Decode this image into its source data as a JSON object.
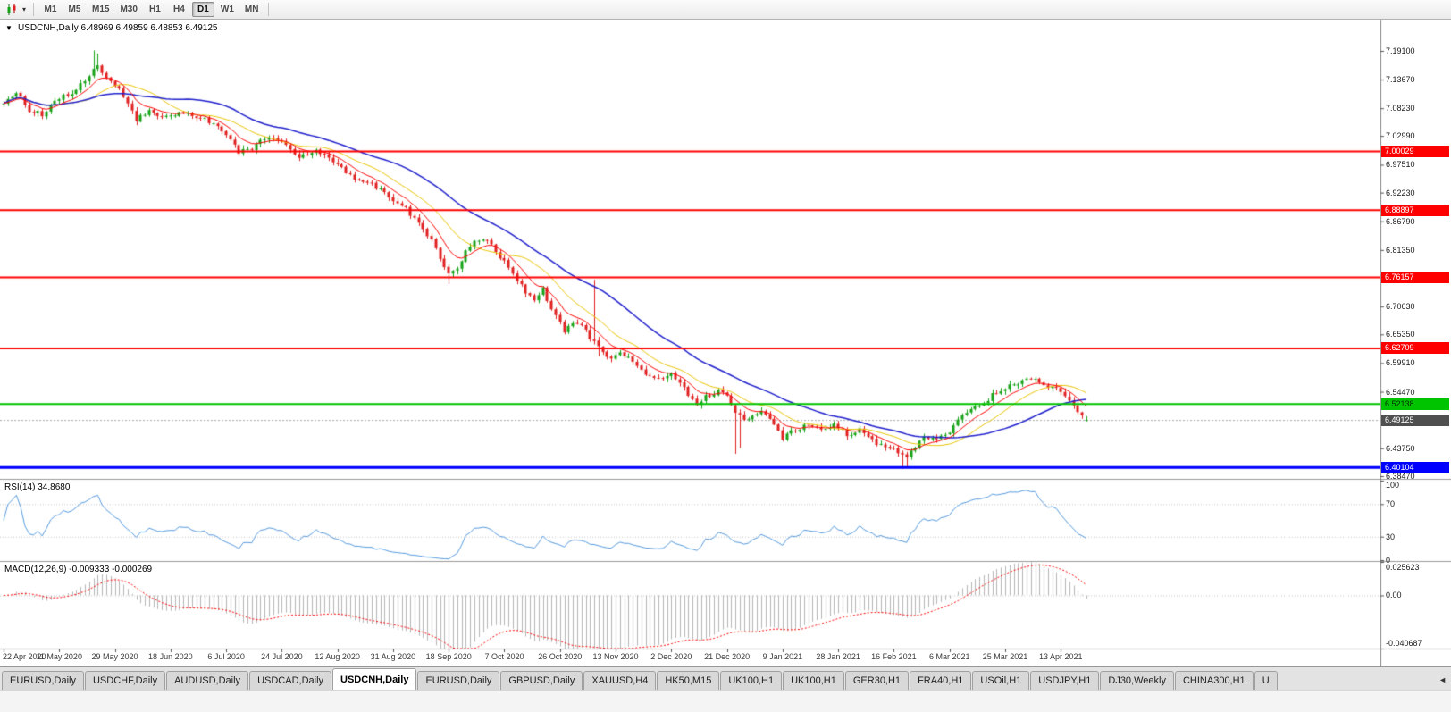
{
  "icons": {
    "chart_type": "candlestick-chart-icon",
    "caret_down": "▾",
    "one_click_arrow": "▼",
    "tab_scroll_left": "◄"
  },
  "toolbar": {
    "timeframes": [
      "M1",
      "M5",
      "M15",
      "M30",
      "H1",
      "H4",
      "D1",
      "W1",
      "MN"
    ],
    "active_timeframe": "D1"
  },
  "tabs": {
    "items": [
      {
        "label": "EURUSD,Daily",
        "active": false
      },
      {
        "label": "USDCHF,Daily",
        "active": false
      },
      {
        "label": "AUDUSD,Daily",
        "active": false
      },
      {
        "label": "USDCAD,Daily",
        "active": false
      },
      {
        "label": "USDCNH,Daily",
        "active": true
      },
      {
        "label": "EURUSD,Daily",
        "active": false
      },
      {
        "label": "GBPUSD,Daily",
        "active": false
      },
      {
        "label": "XAUUSD,H4",
        "active": false
      },
      {
        "label": "HK50,M15",
        "active": false
      },
      {
        "label": "UK100,H1",
        "active": false
      },
      {
        "label": "UK100,H1",
        "active": false
      },
      {
        "label": "GER30,H1",
        "active": false
      },
      {
        "label": "FRA40,H1",
        "active": false
      },
      {
        "label": "USOil,H1",
        "active": false
      },
      {
        "label": "USDJPY,H1",
        "active": false
      },
      {
        "label": "DJ30,Weekly",
        "active": false
      },
      {
        "label": "CHINA300,H1",
        "active": false
      },
      {
        "label": "U",
        "active": false,
        "truncated": true
      }
    ]
  },
  "chart_data": {
    "type": "candlestick",
    "symbol": "USDCNH",
    "period": "Daily",
    "info_line": "USDCNH,Daily 6.48969 6.49859 6.48853 6.49125",
    "last_ohlc": {
      "open": 6.48969,
      "high": 6.49859,
      "low": 6.48853,
      "close": 6.49125
    },
    "price_panel": {
      "ylim": [
        6.3796,
        7.2503
      ],
      "y_ticks": [
        "7.19100",
        "7.13670",
        "7.08230",
        "7.02990",
        "6.97510",
        "6.92230",
        "6.86790",
        "6.81350",
        "6.70630",
        "6.65350",
        "6.59910",
        "6.54470",
        "6.43750",
        "6.38470"
      ],
      "hlines": [
        {
          "value": 7.00029,
          "label": "7.00029",
          "color": "#ff0000",
          "line_width": 2,
          "text_color": "#ffffff"
        },
        {
          "value": 6.88897,
          "label": "6.88897",
          "color": "#ff0000",
          "line_width": 2,
          "text_color": "#ffffff"
        },
        {
          "value": 6.76157,
          "label": "6.76157",
          "color": "#ff0000",
          "line_width": 2,
          "text_color": "#ffffff"
        },
        {
          "value": 6.62709,
          "label": "6.62709",
          "color": "#ff0000",
          "line_width": 2,
          "text_color": "#ffffff"
        },
        {
          "value": 6.52138,
          "label": "6.52138",
          "color": "#00c400",
          "line_width": 2,
          "text_color": "#002b00"
        },
        {
          "value": 6.40104,
          "label": "6.40104",
          "color": "#0000ff",
          "line_width": 3,
          "text_color": "#ffffff"
        }
      ],
      "current_price": {
        "value": 6.49125,
        "label": "6.49125",
        "tag_color": "#4f4f4f",
        "text_color": "#ffffff",
        "line_color": "#a8a8a8"
      },
      "bars": 254,
      "bull_color": "#17a317",
      "bear_color": "#e02020",
      "close_keypoints": [
        [
          0,
          7.095
        ],
        [
          3,
          7.115
        ],
        [
          6,
          7.08
        ],
        [
          9,
          7.07
        ],
        [
          13,
          7.1
        ],
        [
          17,
          7.115
        ],
        [
          20,
          7.145
        ],
        [
          22,
          7.16
        ],
        [
          25,
          7.135
        ],
        [
          28,
          7.105
        ],
        [
          31,
          7.06
        ],
        [
          34,
          7.075
        ],
        [
          37,
          7.065
        ],
        [
          41,
          7.072
        ],
        [
          45,
          7.068
        ],
        [
          49,
          7.052
        ],
        [
          52,
          7.03
        ],
        [
          55,
          6.998
        ],
        [
          58,
          7.008
        ],
        [
          62,
          7.028
        ],
        [
          65,
          7.018
        ],
        [
          69,
          6.992
        ],
        [
          73,
          7.002
        ],
        [
          76,
          6.985
        ],
        [
          79,
          6.968
        ],
        [
          82,
          6.952
        ],
        [
          86,
          6.938
        ],
        [
          89,
          6.92
        ],
        [
          91,
          6.908
        ],
        [
          94,
          6.89
        ],
        [
          97,
          6.868
        ],
        [
          100,
          6.83
        ],
        [
          102,
          6.8
        ],
        [
          104,
          6.768
        ],
        [
          106,
          6.782
        ],
        [
          109,
          6.822
        ],
        [
          112,
          6.838
        ],
        [
          115,
          6.812
        ],
        [
          118,
          6.78
        ],
        [
          121,
          6.745
        ],
        [
          124,
          6.716
        ],
        [
          126,
          6.738
        ],
        [
          128,
          6.7
        ],
        [
          131,
          6.662
        ],
        [
          134,
          6.678
        ],
        [
          137,
          6.648
        ],
        [
          139,
          6.632
        ],
        [
          141,
          6.606
        ],
        [
          144,
          6.618
        ],
        [
          147,
          6.6
        ],
        [
          150,
          6.578
        ],
        [
          153,
          6.572
        ],
        [
          156,
          6.58
        ],
        [
          159,
          6.552
        ],
        [
          162,
          6.522
        ],
        [
          165,
          6.54
        ],
        [
          168,
          6.548
        ],
        [
          171,
          6.502
        ],
        [
          174,
          6.492
        ],
        [
          177,
          6.512
        ],
        [
          180,
          6.478
        ],
        [
          182,
          6.458
        ],
        [
          185,
          6.472
        ],
        [
          188,
          6.484
        ],
        [
          191,
          6.472
        ],
        [
          194,
          6.48
        ],
        [
          197,
          6.462
        ],
        [
          200,
          6.474
        ],
        [
          203,
          6.452
        ],
        [
          206,
          6.442
        ],
        [
          208,
          6.434
        ],
        [
          211,
          6.418
        ],
        [
          213,
          6.442
        ],
        [
          215,
          6.462
        ],
        [
          218,
          6.455
        ],
        [
          221,
          6.47
        ],
        [
          224,
          6.502
        ],
        [
          227,
          6.514
        ],
        [
          230,
          6.532
        ],
        [
          233,
          6.55
        ],
        [
          236,
          6.56
        ],
        [
          239,
          6.57
        ],
        [
          242,
          6.562
        ],
        [
          245,
          6.554
        ],
        [
          247,
          6.542
        ],
        [
          249,
          6.526
        ],
        [
          251,
          6.506
        ],
        [
          253,
          6.49125
        ]
      ],
      "wick_spikes": [
        {
          "bar": 21,
          "high": 7.192
        },
        {
          "bar": 22,
          "high": 7.186
        },
        {
          "bar": 104,
          "low": 6.749
        },
        {
          "bar": 138,
          "high": 6.757
        },
        {
          "bar": 139,
          "low": 6.612
        },
        {
          "bar": 171,
          "low": 6.427
        },
        {
          "bar": 172,
          "low": 6.438
        },
        {
          "bar": 210,
          "low": 6.399
        },
        {
          "bar": 211,
          "low": 6.401
        }
      ],
      "moving_averages": [
        {
          "name": "ma-fast",
          "method": "ema",
          "period": 8,
          "color": "#ff0000",
          "width": 1
        },
        {
          "name": "ma-mid",
          "method": "sma",
          "period": 16,
          "color": "#e8c300",
          "width": 1
        },
        {
          "name": "ma-slow",
          "method": "sma",
          "period": 34,
          "color": "#2020cc",
          "width": 1.5
        }
      ]
    },
    "rsi_panel": {
      "info_line": "RSI(14) 34.8680",
      "period": 14,
      "value": 34.868,
      "color": "#5599dd",
      "levels": [
        70,
        30
      ],
      "y_ticks": [
        "100",
        "70",
        "30",
        "0"
      ],
      "ylim": [
        0,
        100
      ]
    },
    "macd_panel": {
      "info_line": "MACD(12,26,9) -0.009333 -0.000269",
      "fast": 12,
      "slow": 26,
      "signal": 9,
      "macd_value": -0.009333,
      "signal_value": -0.000269,
      "histogram_color": "#b4b4b4",
      "signal_color": "#ff0000",
      "ylim": [
        -0.040687,
        0.025623
      ],
      "y_ticks": [
        {
          "label": "0.025623",
          "value": 0.025623
        },
        {
          "label": "0.00",
          "value": 0
        },
        {
          "label": "-0.040687",
          "value": -0.040687
        }
      ]
    },
    "x_labels": [
      {
        "bar": 0,
        "label": "22 Apr 2020"
      },
      {
        "bar": 13,
        "label": "11 May 2020"
      },
      {
        "bar": 26,
        "label": "29 May 2020"
      },
      {
        "bar": 39,
        "label": "18 Jun 2020"
      },
      {
        "bar": 52,
        "label": "6 Jul 2020"
      },
      {
        "bar": 65,
        "label": "24 Jul 2020"
      },
      {
        "bar": 78,
        "label": "12 Aug 2020"
      },
      {
        "bar": 91,
        "label": "31 Aug 2020"
      },
      {
        "bar": 104,
        "label": "18 Sep 2020"
      },
      {
        "bar": 117,
        "label": "7 Oct 2020"
      },
      {
        "bar": 130,
        "label": "26 Oct 2020"
      },
      {
        "bar": 143,
        "label": "13 Nov 2020"
      },
      {
        "bar": 156,
        "label": "2 Dec 2020"
      },
      {
        "bar": 169,
        "label": "21 Dec 2020"
      },
      {
        "bar": 182,
        "label": "9 Jan 2021"
      },
      {
        "bar": 195,
        "label": "28 Jan 2021"
      },
      {
        "bar": 208,
        "label": "16 Feb 2021"
      },
      {
        "bar": 221,
        "label": "6 Mar 2021"
      },
      {
        "bar": 234,
        "label": "25 Mar 2021"
      },
      {
        "bar": 247,
        "label": "13 Apr 2021"
      }
    ]
  }
}
